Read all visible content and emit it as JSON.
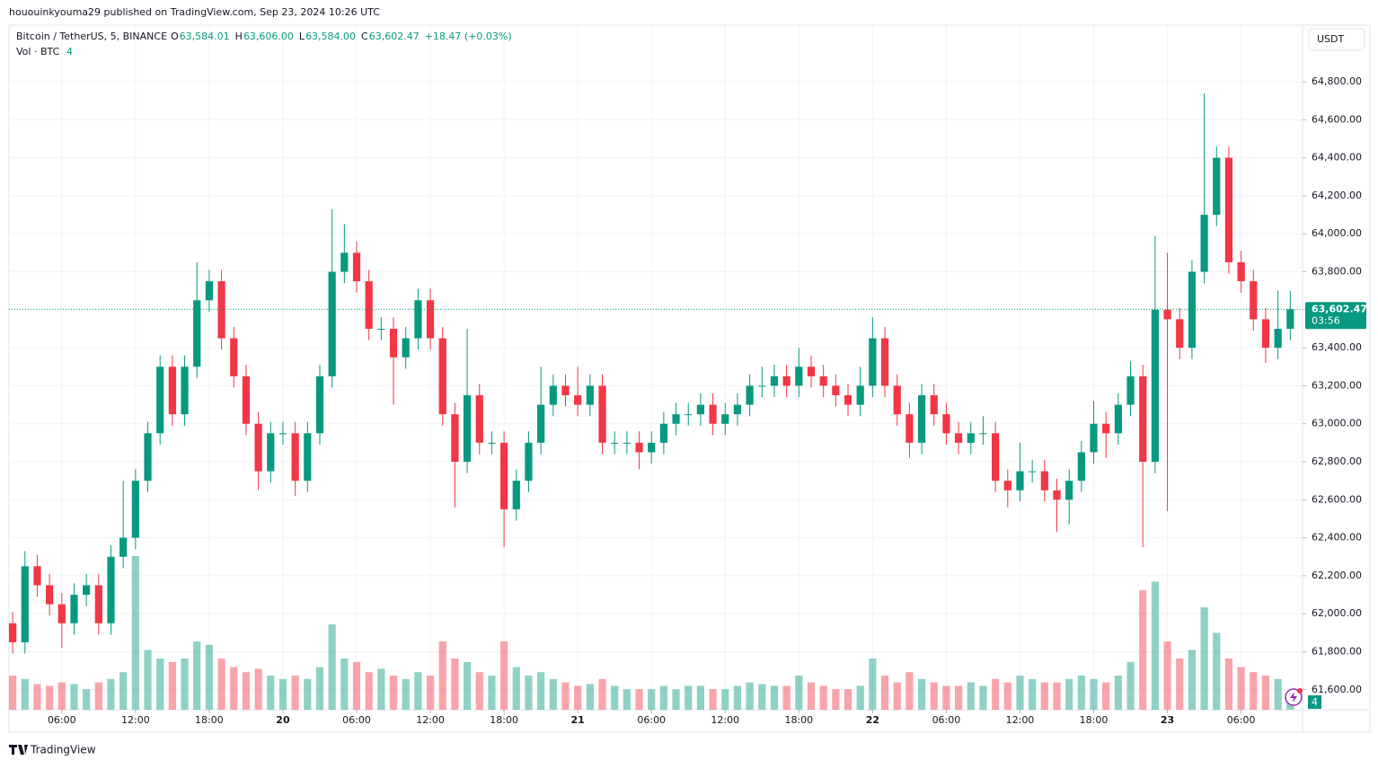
{
  "header": {
    "publisher": "hououinkyouma29 published on TradingView.com, Sep 23, 2024 10:26 UTC",
    "symbol": "Bitcoin / TetherUS, 5, BINANCE",
    "ohlc": [
      {
        "key": "O",
        "value": "63,584.01"
      },
      {
        "key": "H",
        "value": "63,606.00"
      },
      {
        "key": "L",
        "value": "63,584.00"
      },
      {
        "key": "C",
        "value": "63,602.47"
      }
    ],
    "change": "+18.47 (+0.03%)",
    "volume_label": "Vol · BTC",
    "currency": "USDT",
    "footer": "TradingView"
  },
  "chart_data": {
    "type": "candlestick",
    "up_color": "#089981",
    "down_color": "#f23645",
    "open": [
      61950,
      61850,
      62250,
      62150,
      62050,
      61950,
      62100,
      62150,
      61950,
      62300,
      62400,
      62700,
      62950,
      63300,
      63050,
      63300,
      63650,
      63750,
      63450,
      63250,
      63000,
      62750,
      62950,
      62950,
      62700,
      62950,
      63250,
      63800,
      63900,
      63750,
      63500,
      63500,
      63350,
      63450,
      63650,
      63450,
      63050,
      62800,
      63150,
      62900,
      62900,
      62550,
      62700,
      62900,
      63100,
      63200,
      63150,
      63100,
      63200,
      62900,
      62900,
      62900,
      62850,
      62900,
      63000,
      63050,
      63050,
      63100,
      63000,
      63050,
      63100,
      63200,
      63200,
      63250,
      63200,
      63300,
      63250,
      63200,
      63150,
      63100,
      63200,
      63450,
      63200,
      63050,
      62900,
      63150,
      63050,
      62950,
      62900,
      62950,
      62950,
      62700,
      62650,
      62750,
      62750,
      62650,
      62600,
      62700,
      62850,
      63000,
      62950,
      63100,
      63250,
      62800,
      63600,
      63550,
      63400,
      63800,
      64100,
      64400,
      63850,
      63750,
      63550,
      63400,
      63500
    ],
    "high": [
      62010,
      62330,
      62310,
      62210,
      62110,
      62160,
      62210,
      62210,
      62360,
      62700,
      62760,
      63010,
      63360,
      63360,
      63360,
      63850,
      63810,
      63810,
      63510,
      63310,
      63060,
      63010,
      63010,
      63010,
      63010,
      63310,
      64130,
      64050,
      63960,
      63810,
      63560,
      63560,
      63510,
      63710,
      63710,
      63510,
      63110,
      63500,
      63210,
      62960,
      62960,
      62760,
      62960,
      63300,
      63260,
      63260,
      63300,
      63260,
      63260,
      62960,
      62960,
      62960,
      62960,
      63060,
      63110,
      63110,
      63160,
      63160,
      63110,
      63160,
      63260,
      63300,
      63310,
      63310,
      63400,
      63360,
      63310,
      63260,
      63210,
      63300,
      63560,
      63510,
      63260,
      63110,
      63210,
      63210,
      63110,
      63010,
      63010,
      63040,
      63010,
      62760,
      62900,
      62810,
      62810,
      62710,
      62760,
      62910,
      63120,
      63060,
      63160,
      63330,
      63310,
      63990,
      63900,
      63610,
      63860,
      64740,
      64460,
      64460,
      63910,
      63810,
      63610,
      63700,
      63700
    ],
    "low": [
      61790,
      61790,
      62090,
      61990,
      61820,
      61890,
      62040,
      61890,
      61890,
      62240,
      62340,
      62640,
      62890,
      62990,
      62990,
      63240,
      63590,
      63390,
      63190,
      62940,
      62650,
      62690,
      62890,
      62620,
      62640,
      62890,
      63190,
      63740,
      63690,
      63440,
      63440,
      63100,
      63290,
      63390,
      63390,
      62990,
      62560,
      62740,
      62840,
      62840,
      62350,
      62490,
      62640,
      62840,
      63040,
      63090,
      63040,
      63040,
      62840,
      62840,
      62840,
      62760,
      62790,
      62840,
      62940,
      62990,
      62990,
      62940,
      62940,
      62990,
      63040,
      63140,
      63140,
      63140,
      63140,
      63190,
      63140,
      63090,
      63040,
      63040,
      63140,
      63140,
      62990,
      62820,
      62840,
      62990,
      62890,
      62840,
      62840,
      62890,
      62640,
      62560,
      62590,
      62690,
      62590,
      62430,
      62470,
      62640,
      62790,
      62820,
      62890,
      63040,
      62350,
      62740,
      62540,
      63340,
      63340,
      63740,
      64040,
      63790,
      63690,
      63490,
      63320,
      63340,
      63440
    ],
    "close": [
      61850,
      62250,
      62150,
      62050,
      61950,
      62100,
      62150,
      61950,
      62300,
      62400,
      62700,
      62950,
      63300,
      63050,
      63300,
      63650,
      63750,
      63450,
      63250,
      63000,
      62750,
      62950,
      62950,
      62700,
      62950,
      63250,
      63800,
      63900,
      63750,
      63500,
      63500,
      63350,
      63450,
      63650,
      63450,
      63050,
      62800,
      63150,
      62900,
      62900,
      62550,
      62700,
      62900,
      63100,
      63200,
      63150,
      63100,
      63200,
      62900,
      62900,
      62900,
      62850,
      62900,
      63000,
      63050,
      63050,
      63100,
      63000,
      63050,
      63100,
      63200,
      63200,
      63250,
      63200,
      63300,
      63250,
      63200,
      63150,
      63100,
      63200,
      63450,
      63200,
      63050,
      62900,
      63150,
      63050,
      62950,
      62900,
      62950,
      62950,
      62700,
      62650,
      62750,
      62750,
      62650,
      62600,
      62700,
      62850,
      63000,
      62950,
      63100,
      63250,
      62800,
      63600,
      63550,
      63400,
      63800,
      64100,
      64400,
      63850,
      63750,
      63550,
      63400,
      63500,
      63602.47
    ],
    "volume": [
      20,
      18,
      15,
      14,
      16,
      15,
      12,
      16,
      18,
      22,
      90,
      35,
      30,
      28,
      30,
      40,
      38,
      30,
      25,
      22,
      24,
      20,
      18,
      20,
      18,
      25,
      50,
      30,
      28,
      22,
      24,
      20,
      18,
      22,
      20,
      40,
      30,
      28,
      22,
      20,
      40,
      25,
      20,
      22,
      18,
      16,
      14,
      15,
      18,
      14,
      12,
      12,
      12,
      14,
      12,
      14,
      14,
      12,
      12,
      14,
      16,
      15,
      14,
      14,
      20,
      16,
      14,
      12,
      12,
      14,
      30,
      20,
      16,
      22,
      18,
      16,
      14,
      14,
      16,
      14,
      18,
      16,
      20,
      18,
      16,
      16,
      18,
      20,
      18,
      16,
      20,
      28,
      70,
      75,
      40,
      30,
      35,
      60,
      45,
      30,
      25,
      22,
      20,
      18,
      4
    ],
    "vlim": [
      0,
      100
    ],
    "xlim": [
      -0.3,
      105
    ],
    "xticks": [
      {
        "value": 4,
        "label": "06:00"
      },
      {
        "value": 10,
        "label": "12:00"
      },
      {
        "value": 16,
        "label": "18:00"
      },
      {
        "value": 22,
        "label": "20"
      },
      {
        "value": 28,
        "label": "06:00"
      },
      {
        "value": 34,
        "label": "12:00"
      },
      {
        "value": 40,
        "label": "18:00"
      },
      {
        "value": 46,
        "label": "21"
      },
      {
        "value": 52,
        "label": "06:00"
      },
      {
        "value": 58,
        "label": "12:00"
      },
      {
        "value": 64,
        "label": "18:00"
      },
      {
        "value": 70,
        "label": "22"
      },
      {
        "value": 76,
        "label": "06:00"
      },
      {
        "value": 82,
        "label": "12:00"
      },
      {
        "value": 88,
        "label": "18:00"
      },
      {
        "value": 94,
        "label": "23"
      },
      {
        "value": 100,
        "label": "06:00"
      }
    ],
    "ylim": [
      61495,
      65098
    ],
    "yticks": [
      {
        "value": 61600,
        "label": "61,600.00"
      },
      {
        "value": 61800,
        "label": "61,800.00"
      },
      {
        "value": 62000,
        "label": "62,000.00"
      },
      {
        "value": 62200,
        "label": "62,200.00"
      },
      {
        "value": 62400,
        "label": "62,400.00"
      },
      {
        "value": 62600,
        "label": "62,600.00"
      },
      {
        "value": 62800,
        "label": "62,800.00"
      },
      {
        "value": 63000,
        "label": "63,000.00"
      },
      {
        "value": 63200,
        "label": "63,200.00"
      },
      {
        "value": 63400,
        "label": "63,400.00"
      },
      {
        "value": 63600,
        "label": "63,600.00"
      },
      {
        "value": 63800,
        "label": "63,800.00"
      },
      {
        "value": 64000,
        "label": "64,000.00"
      },
      {
        "value": 64200,
        "label": "64,200.00"
      },
      {
        "value": 64400,
        "label": "64,400.00"
      },
      {
        "value": 64600,
        "label": "64,600.00"
      },
      {
        "value": 64800,
        "label": "64,800.00"
      }
    ],
    "last_price": {
      "value": 63602.47,
      "label": "63,602.47"
    },
    "countdown": "03:56",
    "grid": true
  }
}
